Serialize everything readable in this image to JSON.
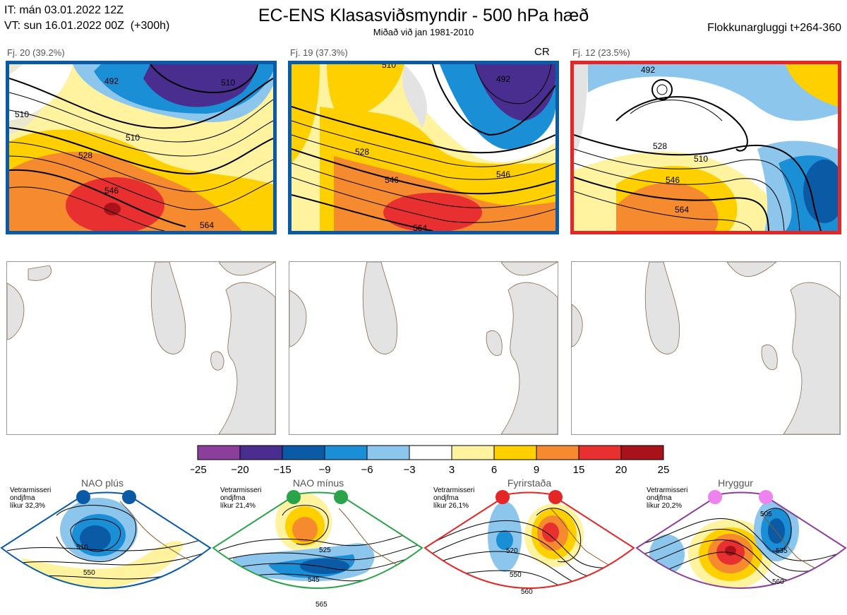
{
  "header": {
    "it_line": "IT: mán 03.01.2022 12Z",
    "vt_line": "VT: sun 16.01.2022 00Z  (+300h)",
    "title": "EC-ENS Klasasviðsmyndir - 500 hPa hæð",
    "subtitle": "Miðað við jan 1981-2010",
    "window": "Flokkunargluggi t+264-360"
  },
  "clusters": [
    {
      "label": "Fj. 20 (39.2%)",
      "border_color": "#0b5aa5",
      "extra": "",
      "contours": [
        "510",
        "510",
        "510",
        "528",
        "546",
        "564",
        "492"
      ]
    },
    {
      "label": "Fj. 19 (37.3%)",
      "border_color": "#0b5aa5",
      "extra": "CR",
      "contours": [
        "510",
        "528",
        "546",
        "564",
        "492",
        "546"
      ]
    },
    {
      "label": "Fj. 12 (23.5%)",
      "border_color": "#e52626",
      "extra": "",
      "contours": [
        "510",
        "528",
        "546",
        "564",
        "492"
      ]
    }
  ],
  "colorbar": {
    "ticks": [
      "−25",
      "−20",
      "−15",
      "−9",
      "−6",
      "−3",
      "3",
      "6",
      "9",
      "15",
      "20",
      "25"
    ],
    "colors": [
      "#8b3f9a",
      "#4a2e8f",
      "#0b5aa5",
      "#1a8fd6",
      "#8cc6ec",
      "#ffffff",
      "#fff3a0",
      "#ffd000",
      "#f58a2e",
      "#e83030",
      "#a8121a"
    ]
  },
  "regimes": [
    {
      "name": "NAO plús",
      "note": "Vetrarmisseri\nondjfma\nlíkur 32,3%",
      "border_color": "#0b5aa5",
      "dot_color": "#0b5aa5",
      "contours": [
        "510",
        "550"
      ]
    },
    {
      "name": "NAO mínus",
      "note": "Vetrarmisseri\nondjfma\nlíkur 21,4%",
      "border_color": "#2aa34a",
      "dot_color": "#2aa34a",
      "contours": [
        "525",
        "545",
        "565"
      ]
    },
    {
      "name": "Fyrirstaða",
      "note": "Vetrarmisseri\nondjfma\nlíkur 26,1%",
      "border_color": "#e52626",
      "dot_color": "#e52626",
      "contours": [
        "520",
        "550",
        "560"
      ]
    },
    {
      "name": "Hryggur",
      "note": "Vetrarmisseri\nondjfma\nlíkur 20,2%",
      "border_color": "#8b3f9a",
      "dot_color": "#ee82ee",
      "contours": [
        "505",
        "535",
        "560"
      ]
    }
  ],
  "colors": {
    "land": "#e3e3e3",
    "coast": "#8a6a4a",
    "contour": "#000000"
  }
}
